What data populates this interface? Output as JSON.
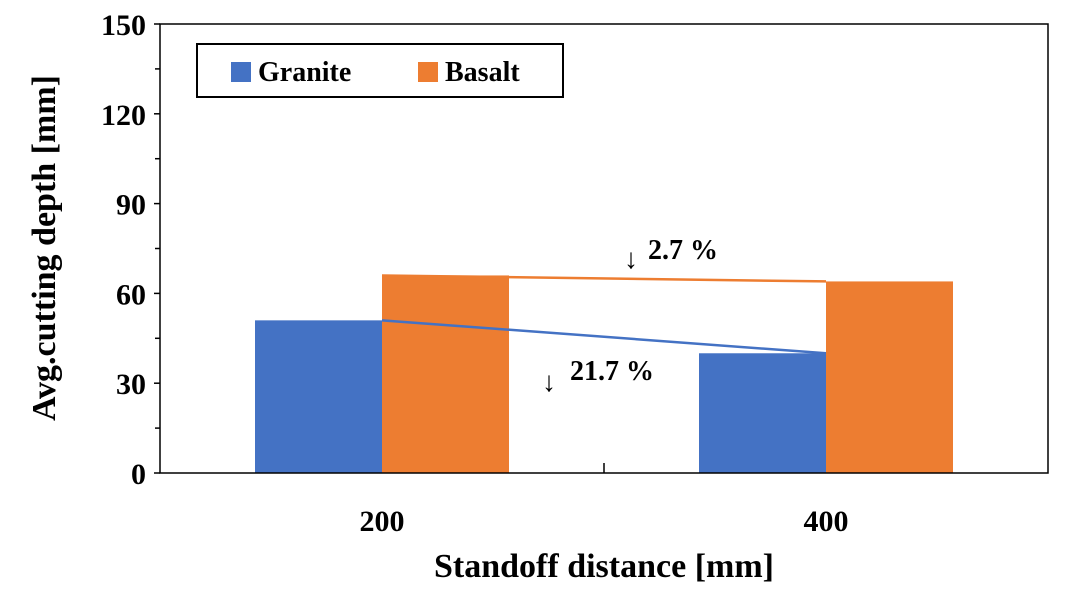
{
  "chart_data": {
    "type": "bar",
    "categories": [
      "200",
      "400"
    ],
    "series": [
      {
        "name": "Granite",
        "values": [
          51,
          40
        ],
        "color": "#4472C4"
      },
      {
        "name": "Basalt",
        "values": [
          66,
          64
        ],
        "color": "#ED7D31"
      }
    ],
    "xlabel": "Standoff distance [mm]",
    "ylabel": "Avg.cutting depth [mm]",
    "ylim": [
      0,
      150
    ],
    "yticks": [
      "0",
      "30",
      "60",
      "90",
      "120",
      "150"
    ],
    "grid": false,
    "legend_position": "top-left",
    "annotations": [
      {
        "series": "Basalt",
        "text": "2.7 %",
        "arrow": "↓"
      },
      {
        "series": "Granite",
        "text": "21.7 %",
        "arrow": "↓"
      }
    ]
  }
}
